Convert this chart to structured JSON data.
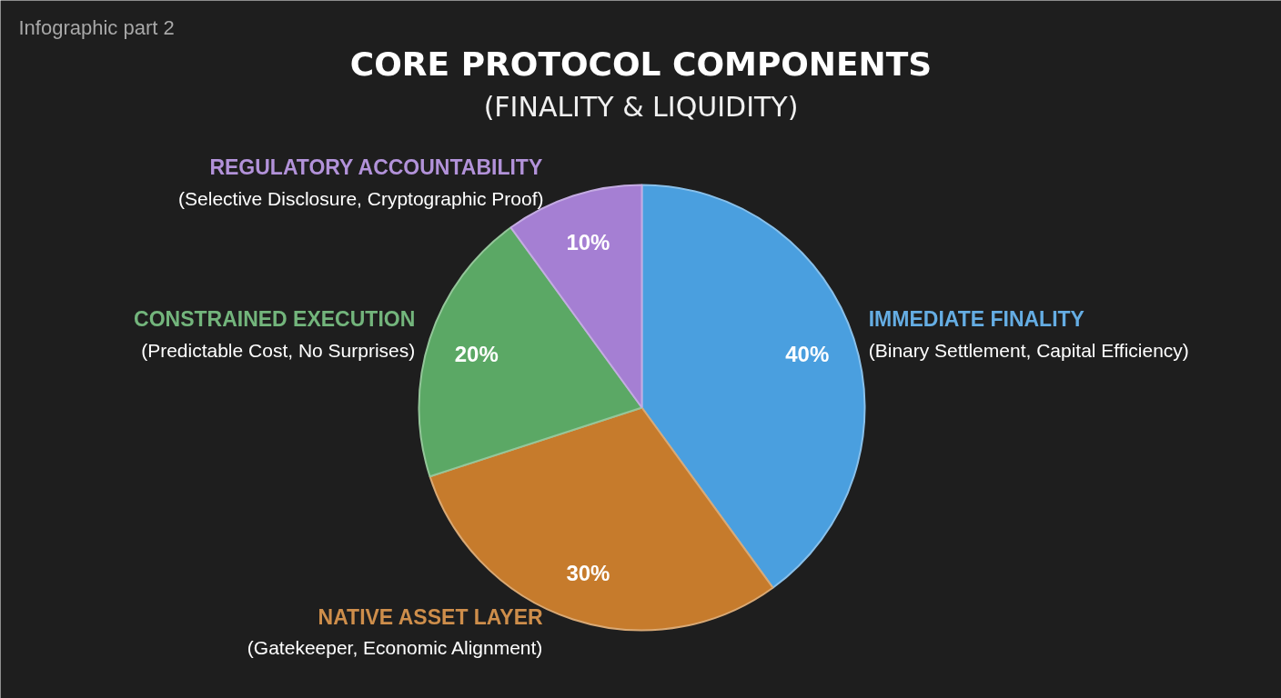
{
  "chart_data": {
    "type": "pie",
    "title": "CORE PROTOCOL COMPONENTS",
    "subtitle": "(FINALITY & LIQUIDITY)",
    "categories": [
      "IMMEDIATE FINALITY\n(Binary Settlement, Capital Efficiency)",
      "NATIVE ASSET LAYER\n(Gatekeeper, Economic Alignment)",
      "CONSTRAINED EXECUTION\n(Predictable Cost, No Surprises)",
      "REGULATORY ACCOUNTABILITY\n(Selective Disclosure, Cryptographic Proof)"
    ],
    "values": [
      40,
      30,
      20,
      10
    ],
    "colors": [
      "#4a9fdf",
      "#c67b2c",
      "#5ba865",
      "#a57fd3"
    ],
    "value_labels": [
      "40%",
      "30%",
      "20%",
      "10%"
    ],
    "annotations": [
      "Infographic part 2"
    ]
  }
}
